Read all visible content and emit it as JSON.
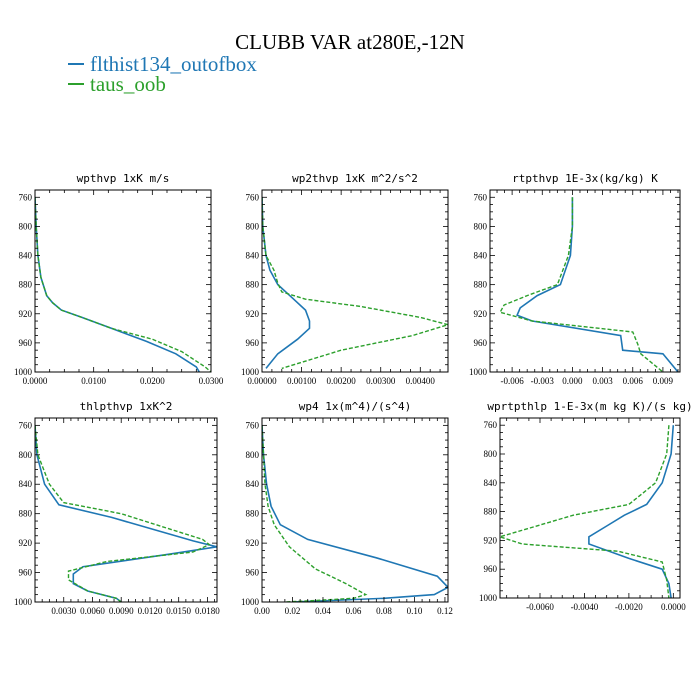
{
  "title": "CLUBB VAR at280E,-12N",
  "legend": [
    {
      "label": "flthist134_outofbox",
      "color": "#1f77b4",
      "style": "solid"
    },
    {
      "label": "taus_oob",
      "color": "#2ca02c",
      "style": "dashed"
    }
  ],
  "chart_data": [
    {
      "type": "line",
      "title": "wpthvp  1xK m/s",
      "xlim": [
        0.0,
        0.03
      ],
      "ylim": [
        1000,
        750
      ],
      "xticks": [
        0.0,
        0.01,
        0.02,
        0.03
      ],
      "xtick_labels": [
        "0.0000",
        "0.0100",
        "0.0200",
        "0.0300"
      ],
      "yticks": [
        760,
        800,
        840,
        880,
        920,
        960,
        1000
      ],
      "series": [
        {
          "name": "flthist134_outofbox",
          "x": [
            0.0,
            0.0002,
            0.0005,
            0.001,
            0.002,
            0.003,
            0.0045,
            0.008,
            0.013,
            0.019,
            0.024,
            0.0275,
            0.028
          ],
          "y": [
            760,
            800,
            840,
            870,
            895,
            905,
            915,
            925,
            940,
            958,
            975,
            993,
            1000
          ]
        },
        {
          "name": "taus_oob",
          "x": [
            0.0,
            0.0002,
            0.0005,
            0.001,
            0.002,
            0.003,
            0.0045,
            0.008,
            0.013,
            0.02,
            0.025,
            0.029,
            0.03
          ],
          "y": [
            760,
            800,
            840,
            870,
            895,
            905,
            915,
            925,
            940,
            955,
            972,
            993,
            1000
          ]
        }
      ]
    },
    {
      "type": "line",
      "title": "wp2thvp  1xK m^2/s^2",
      "xlim": [
        0.0,
        0.0047
      ],
      "ylim": [
        1000,
        750
      ],
      "xticks": [
        0.0,
        0.001,
        0.002,
        0.003,
        0.004
      ],
      "xtick_labels": [
        "0.00000",
        "0.00100",
        "0.00200",
        "0.00300",
        "0.00400"
      ],
      "yticks": [
        760,
        800,
        840,
        880,
        920,
        960,
        1000
      ],
      "series": [
        {
          "name": "flthist134_outofbox",
          "x": [
            0.0,
            2e-05,
            0.0001,
            0.0002,
            0.0004,
            0.0008,
            0.0011,
            0.0012,
            0.0012,
            0.0009,
            0.0004,
            0.0001
          ],
          "y": [
            760,
            800,
            840,
            860,
            880,
            900,
            915,
            930,
            940,
            955,
            975,
            995
          ]
        },
        {
          "name": "taus_oob",
          "x": [
            0.0,
            2e-05,
            0.0001,
            0.0003,
            0.0004,
            0.0005,
            0.0011,
            0.0025,
            0.004,
            0.0047,
            0.0038,
            0.002,
            0.0005
          ],
          "y": [
            760,
            800,
            840,
            860,
            878,
            890,
            900,
            910,
            925,
            935,
            950,
            970,
            995
          ]
        }
      ]
    },
    {
      "type": "line",
      "title": "rtpthvp  1E-3x(kg/kg) K",
      "xlim": [
        -0.0082,
        0.0107
      ],
      "ylim": [
        1000,
        750
      ],
      "xticks": [
        -0.006,
        -0.003,
        0.0,
        0.003,
        0.006,
        0.009
      ],
      "xtick_labels": [
        "-0.006",
        "-0.003",
        "0.000",
        "0.003",
        "0.006",
        "0.009"
      ],
      "yticks": [
        760,
        800,
        840,
        880,
        920,
        960,
        1000
      ],
      "series": [
        {
          "name": "flthist134_outofbox",
          "x": [
            0.0,
            0.0,
            -0.0002,
            -0.0012,
            -0.0035,
            -0.0052,
            -0.0055,
            -0.004,
            0.0048,
            0.005,
            0.009,
            0.0105
          ],
          "y": [
            760,
            800,
            840,
            880,
            895,
            912,
            922,
            930,
            950,
            970,
            975,
            1000
          ]
        },
        {
          "name": "taus_oob",
          "x": [
            0.0,
            0.0,
            -0.0004,
            -0.0015,
            -0.0045,
            -0.0068,
            -0.0072,
            -0.004,
            0.006,
            0.0065,
            0.0068,
            0.009
          ],
          "y": [
            760,
            800,
            840,
            880,
            895,
            908,
            918,
            930,
            945,
            962,
            975,
            1000
          ]
        }
      ]
    },
    {
      "type": "line",
      "title": "thlpthvp  1xK^2",
      "xlim": [
        0.0,
        0.019
      ],
      "ylim": [
        1000,
        750
      ],
      "xticks": [
        0.003,
        0.006,
        0.009,
        0.012,
        0.015,
        0.018
      ],
      "xtick_labels": [
        "0.0030",
        "0.0060",
        "0.0090",
        "0.0120",
        "0.0150",
        "0.0180"
      ],
      "yticks": [
        760,
        800,
        840,
        880,
        920,
        960,
        1000
      ],
      "series": [
        {
          "name": "flthist134_outofbox",
          "x": [
            0.0,
            0.0002,
            0.001,
            0.0025,
            0.008,
            0.0165,
            0.019,
            0.014,
            0.005,
            0.004,
            0.004,
            0.0055,
            0.0085,
            0.009
          ],
          "y": [
            760,
            800,
            840,
            868,
            885,
            917,
            925,
            935,
            952,
            962,
            975,
            985,
            995,
            1000
          ]
        },
        {
          "name": "taus_oob",
          "x": [
            0.0,
            0.0003,
            0.0015,
            0.003,
            0.009,
            0.0175,
            0.0182,
            0.0165,
            0.0075,
            0.0035,
            0.0035,
            0.0055,
            0.0085,
            0.009
          ],
          "y": [
            760,
            800,
            840,
            865,
            880,
            915,
            922,
            932,
            945,
            958,
            970,
            985,
            995,
            1000
          ]
        }
      ]
    },
    {
      "type": "line",
      "title": "wp4  1x(m^4)/(s^4)",
      "xlim": [
        0.0,
        0.122
      ],
      "ylim": [
        1000,
        750
      ],
      "xticks": [
        0.0,
        0.02,
        0.04,
        0.06,
        0.08,
        0.1,
        0.12
      ],
      "xtick_labels": [
        "0.00",
        "0.02",
        "0.04",
        "0.06",
        "0.08",
        "0.10",
        "0.12"
      ],
      "yticks": [
        760,
        800,
        840,
        880,
        920,
        960,
        1000
      ],
      "series": [
        {
          "name": "flthist134_outofbox",
          "x": [
            0.0,
            0.001,
            0.003,
            0.006,
            0.012,
            0.03,
            0.075,
            0.115,
            0.122,
            0.113,
            0.08,
            0.045,
            0.02
          ],
          "y": [
            760,
            800,
            840,
            870,
            895,
            915,
            940,
            965,
            980,
            990,
            995,
            998,
            1000
          ]
        },
        {
          "name": "taus_oob",
          "x": [
            0.0,
            0.001,
            0.002,
            0.004,
            0.008,
            0.018,
            0.035,
            0.055,
            0.068,
            0.06,
            0.035,
            0.015
          ],
          "y": [
            760,
            800,
            840,
            870,
            895,
            925,
            955,
            975,
            990,
            995,
            998,
            1000
          ]
        }
      ]
    },
    {
      "type": "line",
      "title": "wprtpthlp  1-E-3x(m kg K)/(s kg)",
      "xlim": [
        -0.0078,
        0.0003
      ],
      "ylim": [
        1000,
        750
      ],
      "xticks": [
        -0.006,
        -0.004,
        -0.002,
        0.0
      ],
      "xtick_labels": [
        "-0.0060",
        "-0.0040",
        "-0.0020",
        "0.0000"
      ],
      "yticks": [
        760,
        800,
        840,
        880,
        920,
        960,
        1000
      ],
      "series": [
        {
          "name": "flthist134_outofbox",
          "x": [
            0.0,
            -0.0001,
            -0.0005,
            -0.0012,
            -0.0022,
            -0.003,
            -0.0038,
            -0.0038,
            -0.002,
            -0.0005,
            -0.0002,
            -0.0001
          ],
          "y": [
            760,
            800,
            840,
            870,
            885,
            900,
            915,
            925,
            945,
            960,
            980,
            1000
          ]
        },
        {
          "name": "taus_oob",
          "x": [
            -0.0002,
            -0.0003,
            -0.0008,
            -0.002,
            -0.0045,
            -0.0078,
            -0.0068,
            -0.0025,
            -0.0005,
            -0.0003,
            -0.0002
          ],
          "y": [
            760,
            800,
            840,
            870,
            885,
            915,
            925,
            935,
            950,
            975,
            1000
          ]
        }
      ]
    }
  ]
}
